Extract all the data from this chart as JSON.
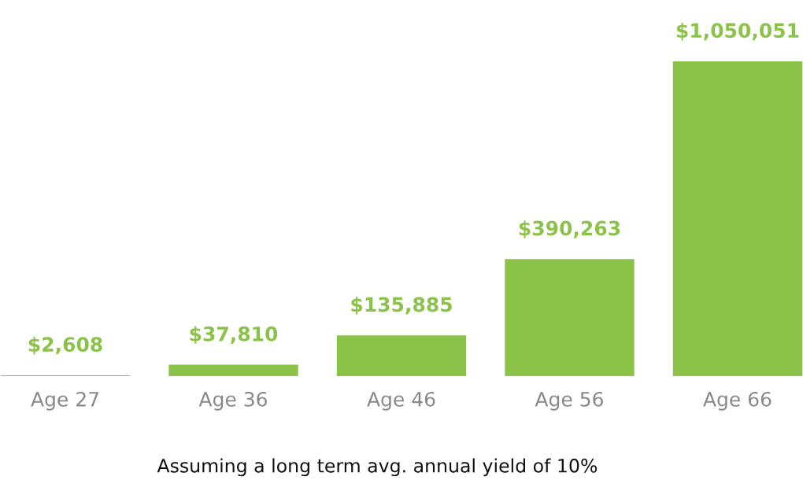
{
  "chart_data": {
    "type": "bar",
    "categories": [
      "Age 27",
      "Age 36",
      "Age 46",
      "Age 56",
      "Age 66"
    ],
    "values": [
      2608,
      37810,
      135885,
      390263,
      1050051
    ],
    "value_labels": [
      "$2,608",
      "$37,810",
      "$135,885",
      "$390,263",
      "$1,050,051"
    ],
    "color": "#8bc34a",
    "annotations": [
      "Assuming a long term avg. annual yield of 10%"
    ],
    "grid": false
  }
}
